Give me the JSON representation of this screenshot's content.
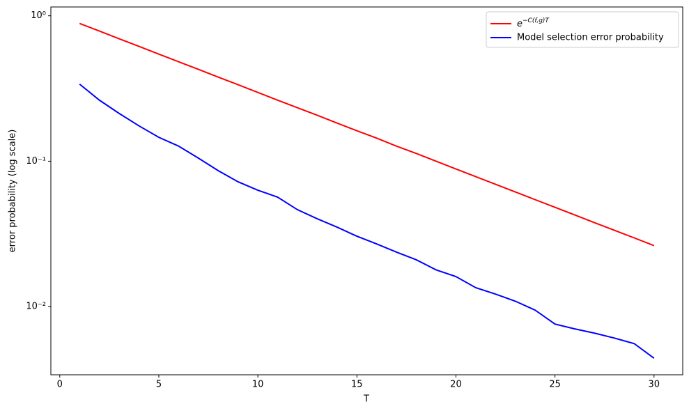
{
  "chart_data": {
    "type": "line",
    "xlabel": "T",
    "ylabel": "error probability (log scale)",
    "x": [
      1,
      2,
      3,
      4,
      5,
      6,
      7,
      8,
      9,
      10,
      11,
      12,
      13,
      14,
      15,
      16,
      17,
      18,
      19,
      20,
      21,
      22,
      23,
      24,
      25,
      26,
      27,
      28,
      29,
      30
    ],
    "series": [
      {
        "name": "e−C(f,g)T",
        "color": "#ff0000",
        "values": [
          0.886,
          0.785,
          0.695,
          0.616,
          0.545,
          0.483,
          0.428,
          0.379,
          0.336,
          0.297,
          0.263,
          0.233,
          0.207,
          0.183,
          0.162,
          0.144,
          0.127,
          0.113,
          0.1,
          0.0884,
          0.0783,
          0.0694,
          0.0615,
          0.0544,
          0.0482,
          0.0427,
          0.0378,
          0.0335,
          0.0297,
          0.0263
        ]
      },
      {
        "name": "Model selection error probability",
        "color": "#0000ff",
        "values": [
          0.339,
          0.263,
          0.213,
          0.175,
          0.146,
          0.127,
          0.105,
          0.0861,
          0.0722,
          0.0632,
          0.0566,
          0.0464,
          0.0402,
          0.0352,
          0.0305,
          0.027,
          0.0237,
          0.021,
          0.0179,
          0.0161,
          0.0135,
          0.0122,
          0.0109,
          0.00946,
          0.00759,
          0.00703,
          0.00657,
          0.00608,
          0.00557,
          0.00442
        ]
      }
    ],
    "xlim": [
      -0.45,
      31.45
    ],
    "xticks": [
      0,
      5,
      10,
      15,
      20,
      25,
      30
    ],
    "ylim": [
      0.0034,
      1.15
    ],
    "yticks": [
      {
        "value": 1,
        "label": "10⁰"
      },
      {
        "value": 0.1,
        "label": "10⁻¹"
      },
      {
        "value": 0.01,
        "label": "10⁻²"
      }
    ],
    "log_y": true,
    "grid": false,
    "legend": "upper right"
  }
}
